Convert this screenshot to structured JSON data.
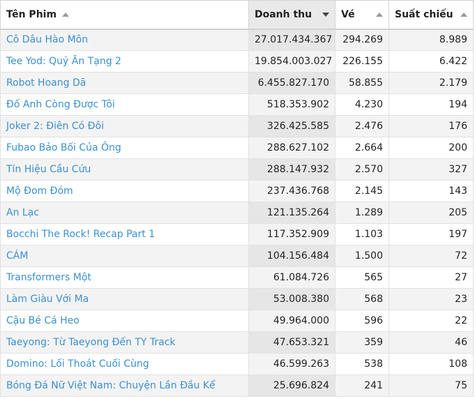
{
  "columns": [
    {
      "label": "Tên Phim",
      "sort": "up"
    },
    {
      "label": "Doanh thu",
      "sort": "down"
    },
    {
      "label": "Vé",
      "sort": "up"
    },
    {
      "label": "Suất chiếu",
      "sort": "up"
    }
  ],
  "rows": [
    {
      "title": "Cô Dâu Hào Môn",
      "revenue": "27.017.434.367",
      "tickets": "294.269",
      "shows": "8.989"
    },
    {
      "title": "Tee Yod: Quỷ Ăn Tạng 2",
      "revenue": "19.854.003.027",
      "tickets": "226.155",
      "shows": "6.422"
    },
    {
      "title": "Robot Hoang Dã",
      "revenue": "6.455.827.170",
      "tickets": "58.855",
      "shows": "2.179"
    },
    {
      "title": "Đố Anh Còng Được Tôi",
      "revenue": "518.353.902",
      "tickets": "4.230",
      "shows": "194"
    },
    {
      "title": "Joker 2: Điên Có Đôi",
      "revenue": "326.425.585",
      "tickets": "2.476",
      "shows": "176"
    },
    {
      "title": "Fubao Bảo Bối Của Ông",
      "revenue": "288.627.102",
      "tickets": "2.664",
      "shows": "200"
    },
    {
      "title": "Tín Hiệu Cầu Cứu",
      "revenue": "288.147.932",
      "tickets": "2.570",
      "shows": "327"
    },
    {
      "title": "Mộ Đom Đóm",
      "revenue": "237.436.768",
      "tickets": "2.145",
      "shows": "143"
    },
    {
      "title": "An Lạc",
      "revenue": "121.135.264",
      "tickets": "1.289",
      "shows": "205"
    },
    {
      "title": "Bocchi The Rock! Recap Part 1",
      "revenue": "117.352.909",
      "tickets": "1.103",
      "shows": "197"
    },
    {
      "title": "CÁM",
      "revenue": "104.156.484",
      "tickets": "1.500",
      "shows": "72"
    },
    {
      "title": "Transformers Một",
      "revenue": "61.084.726",
      "tickets": "565",
      "shows": "27"
    },
    {
      "title": "Làm Giàu Với Ma",
      "revenue": "53.008.380",
      "tickets": "568",
      "shows": "23"
    },
    {
      "title": "Cậu Bé Cá Heo",
      "revenue": "49.964.000",
      "tickets": "596",
      "shows": "22"
    },
    {
      "title": "Taeyong: Từ Taeyong Đến TY Track",
      "revenue": "47.653.321",
      "tickets": "359",
      "shows": "46"
    },
    {
      "title": "Domino: Lối Thoát Cuối Cùng",
      "revenue": "46.599.263",
      "tickets": "538",
      "shows": "108"
    },
    {
      "title": "Bóng Đá Nữ Việt Nam: Chuyện Lần Đầu Kể",
      "revenue": "25.696.824",
      "tickets": "241",
      "shows": "75"
    }
  ],
  "colors": {
    "link": "#3b8fd0",
    "row_alt": "#f3f3f3",
    "sorted_col": "#e6e6e6"
  }
}
